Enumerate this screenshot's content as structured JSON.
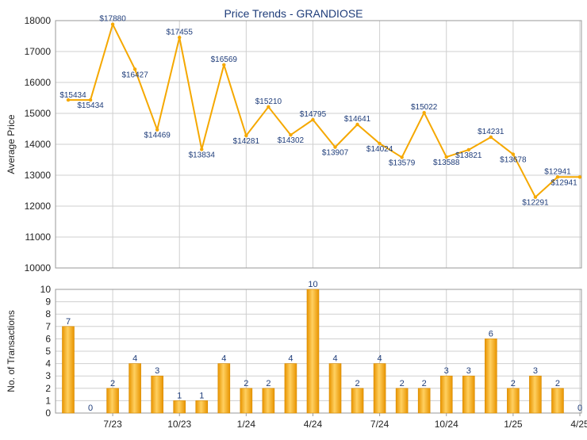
{
  "chart_data": [
    {
      "type": "line",
      "title": "Price Trends - GRANDIOSE",
      "ylabel": "Average Price",
      "ylim": [
        10000,
        18000
      ],
      "yticks": [
        "10000",
        "11000",
        "12000",
        "13000",
        "14000",
        "15000",
        "16000",
        "17000",
        "18000"
      ],
      "grid": true,
      "color": "#f5a800",
      "values": [
        15434,
        15434,
        17880,
        16427,
        14469,
        17455,
        13834,
        16569,
        14281,
        15210,
        14302,
        14795,
        13907,
        14641,
        14024,
        13579,
        15022,
        13588,
        13821,
        14231,
        13678,
        12291,
        12941,
        12941
      ],
      "labels": [
        "$15434",
        "$15434",
        "$17880",
        "$16427",
        "$14469",
        "$17455",
        "$13834",
        "$16569",
        "$14281",
        "$15210",
        "$14302",
        "$14795",
        "$13907",
        "$14641",
        "$14024",
        "$13579",
        "$15022",
        "$13588",
        "$13821",
        "$14231",
        "$13678",
        "$12291",
        "$12941",
        "$12941"
      ]
    },
    {
      "type": "bar",
      "ylabel": "No. of Transactions",
      "ylim": [
        0,
        10
      ],
      "yticks": [
        "0",
        "1",
        "2",
        "3",
        "4",
        "5",
        "6",
        "7",
        "8",
        "9",
        "10"
      ],
      "grid": true,
      "color": "#f5a800",
      "values": [
        7,
        0,
        2,
        4,
        3,
        1,
        1,
        4,
        2,
        2,
        4,
        10,
        4,
        2,
        4,
        2,
        2,
        3,
        3,
        6,
        2,
        3,
        2,
        0
      ],
      "xtick_labels": [
        "7/23",
        "10/23",
        "1/24",
        "4/24",
        "7/24",
        "10/24",
        "1/25",
        "4/25"
      ],
      "xtick_indices": [
        2,
        5,
        8,
        11,
        14,
        17,
        20,
        23
      ]
    }
  ]
}
